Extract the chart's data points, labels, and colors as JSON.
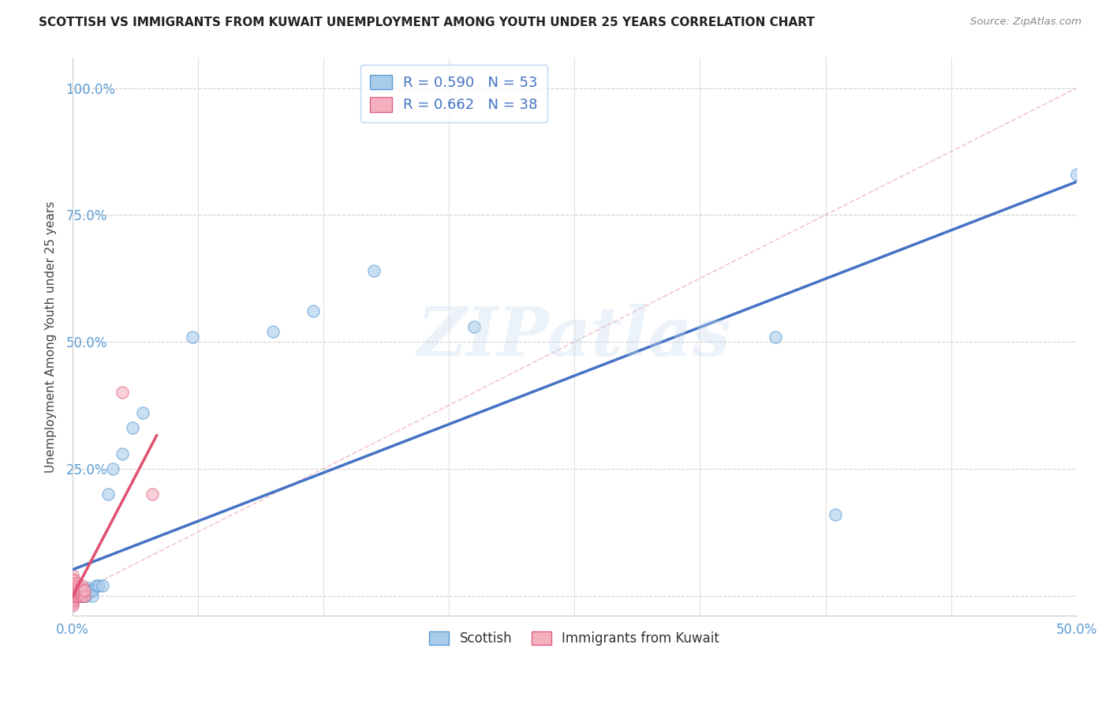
{
  "title": "SCOTTISH VS IMMIGRANTS FROM KUWAIT UNEMPLOYMENT AMONG YOUTH UNDER 25 YEARS CORRELATION CHART",
  "source": "Source: ZipAtlas.com",
  "ylabel": "Unemployment Among Youth under 25 years",
  "xlim": [
    0,
    0.5
  ],
  "ylim": [
    -0.04,
    1.06
  ],
  "R_scottish": 0.59,
  "N_scottish": 53,
  "R_kuwait": 0.662,
  "N_kuwait": 38,
  "scottish_face": "#A8CCEA",
  "scottish_edge": "#5B9BD5",
  "kuwait_face": "#F5B0C0",
  "kuwait_edge": "#E06080",
  "scottish_line": "#4472C4",
  "kuwait_line": "#E05070",
  "watermark": "ZIPatlas",
  "scottish_x": [
    0.0,
    0.0,
    0.0,
    0.0,
    0.0,
    0.0,
    0.001,
    0.001,
    0.001,
    0.001,
    0.001,
    0.001,
    0.002,
    0.002,
    0.002,
    0.002,
    0.003,
    0.003,
    0.003,
    0.003,
    0.004,
    0.004,
    0.004,
    0.005,
    0.005,
    0.005,
    0.005,
    0.005,
    0.006,
    0.006,
    0.007,
    0.007,
    0.008,
    0.008,
    0.009,
    0.01,
    0.01,
    0.012,
    0.013,
    0.015,
    0.018,
    0.02,
    0.025,
    0.03,
    0.035,
    0.06,
    0.1,
    0.12,
    0.15,
    0.2,
    0.35,
    0.38,
    0.5
  ],
  "scottish_y": [
    0.0,
    0.0,
    0.0,
    0.01,
    0.015,
    0.02,
    0.0,
    0.0,
    0.005,
    0.01,
    0.015,
    0.02,
    0.0,
    0.0,
    0.01,
    0.015,
    0.0,
    0.005,
    0.01,
    0.015,
    0.0,
    0.005,
    0.015,
    0.0,
    0.0,
    0.005,
    0.01,
    0.015,
    0.0,
    0.01,
    0.0,
    0.01,
    0.005,
    0.015,
    0.01,
    0.0,
    0.01,
    0.02,
    0.02,
    0.02,
    0.2,
    0.25,
    0.28,
    0.33,
    0.36,
    0.51,
    0.52,
    0.56,
    0.64,
    0.53,
    0.51,
    0.16,
    0.83
  ],
  "kuwait_x": [
    0.0,
    0.0,
    0.0,
    0.0,
    0.0,
    0.0,
    0.0,
    0.0,
    0.0,
    0.0,
    0.0,
    0.0,
    0.001,
    0.001,
    0.001,
    0.001,
    0.001,
    0.001,
    0.002,
    0.002,
    0.002,
    0.002,
    0.003,
    0.003,
    0.003,
    0.003,
    0.003,
    0.004,
    0.004,
    0.004,
    0.005,
    0.005,
    0.005,
    0.005,
    0.006,
    0.006,
    0.025,
    0.04
  ],
  "kuwait_y": [
    -0.02,
    -0.015,
    -0.01,
    -0.005,
    0.0,
    0.005,
    0.01,
    0.015,
    0.02,
    0.025,
    0.03,
    0.04,
    0.0,
    0.005,
    0.01,
    0.015,
    0.02,
    0.03,
    0.0,
    0.005,
    0.015,
    0.025,
    0.0,
    0.005,
    0.01,
    0.015,
    0.02,
    0.0,
    0.005,
    0.015,
    0.0,
    0.005,
    0.01,
    0.02,
    0.0,
    0.01,
    0.4,
    0.2
  ]
}
